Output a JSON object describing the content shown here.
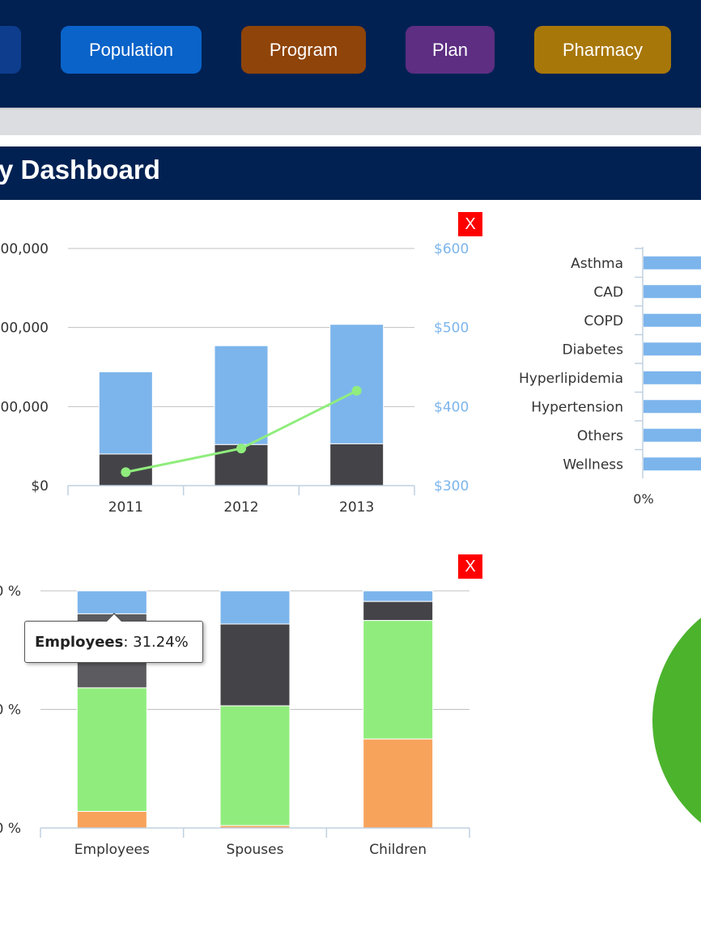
{
  "nav": {
    "buttons": [
      {
        "label": "",
        "color": "#0d3d8c"
      },
      {
        "label": "Population",
        "color": "#0a63c9"
      },
      {
        "label": "Program",
        "color": "#8f4409"
      },
      {
        "label": "Plan",
        "color": "#5d2e82"
      },
      {
        "label": "Pharmacy",
        "color": "#a87709"
      }
    ]
  },
  "header": {
    "title": "y Dashboard"
  },
  "close_label": "X",
  "chart_data": [
    {
      "type": "bar",
      "categories": [
        "2011",
        "2012",
        "2013"
      ],
      "series": [
        {
          "values": [
            40000,
            52000,
            53000
          ],
          "color": "#444448"
        },
        {
          "values": [
            104000,
            125000,
            151000
          ],
          "color": "#7cb5ec"
        }
      ],
      "line_series": {
        "values": [
          317,
          347,
          420
        ],
        "color": "#90ed7d"
      },
      "y_ticks_left": [
        "00,000",
        "00,000",
        "00,000",
        "$0"
      ],
      "y_ticks_right": [
        "$600",
        "$500",
        "$400",
        "$300"
      ],
      "ylim_left": [
        0,
        300000
      ],
      "ylim_right": [
        300,
        600
      ]
    },
    {
      "type": "bar",
      "orientation": "horizontal",
      "categories": [
        "Asthma",
        "CAD",
        "COPD",
        "Diabetes",
        "Hyperlipidemia",
        "Hypertension",
        "Others",
        "Wellness"
      ],
      "x_tick_label": "0%",
      "color": "#7cb5ec"
    },
    {
      "type": "bar",
      "stacked": "percent",
      "categories": [
        "Employees",
        "Spouses",
        "Children"
      ],
      "series": [
        {
          "values": [
            9.7,
            14.0,
            4.5
          ],
          "color": "#7cb5ec"
        },
        {
          "name": "Employees",
          "values": [
            31.24,
            34.5,
            8.0
          ],
          "color": "#444448"
        },
        {
          "values": [
            52.1,
            50.5,
            50.0
          ],
          "color": "#90ed7d"
        },
        {
          "values": [
            7.0,
            1.0,
            37.5
          ],
          "color": "#f7a35c"
        }
      ],
      "y_ticks": [
        "0 %",
        "0 %",
        "0 %"
      ]
    },
    {
      "type": "pie",
      "color": "#4cb32c"
    }
  ],
  "tooltip": {
    "series": "Employees",
    "value": "31.24%"
  }
}
